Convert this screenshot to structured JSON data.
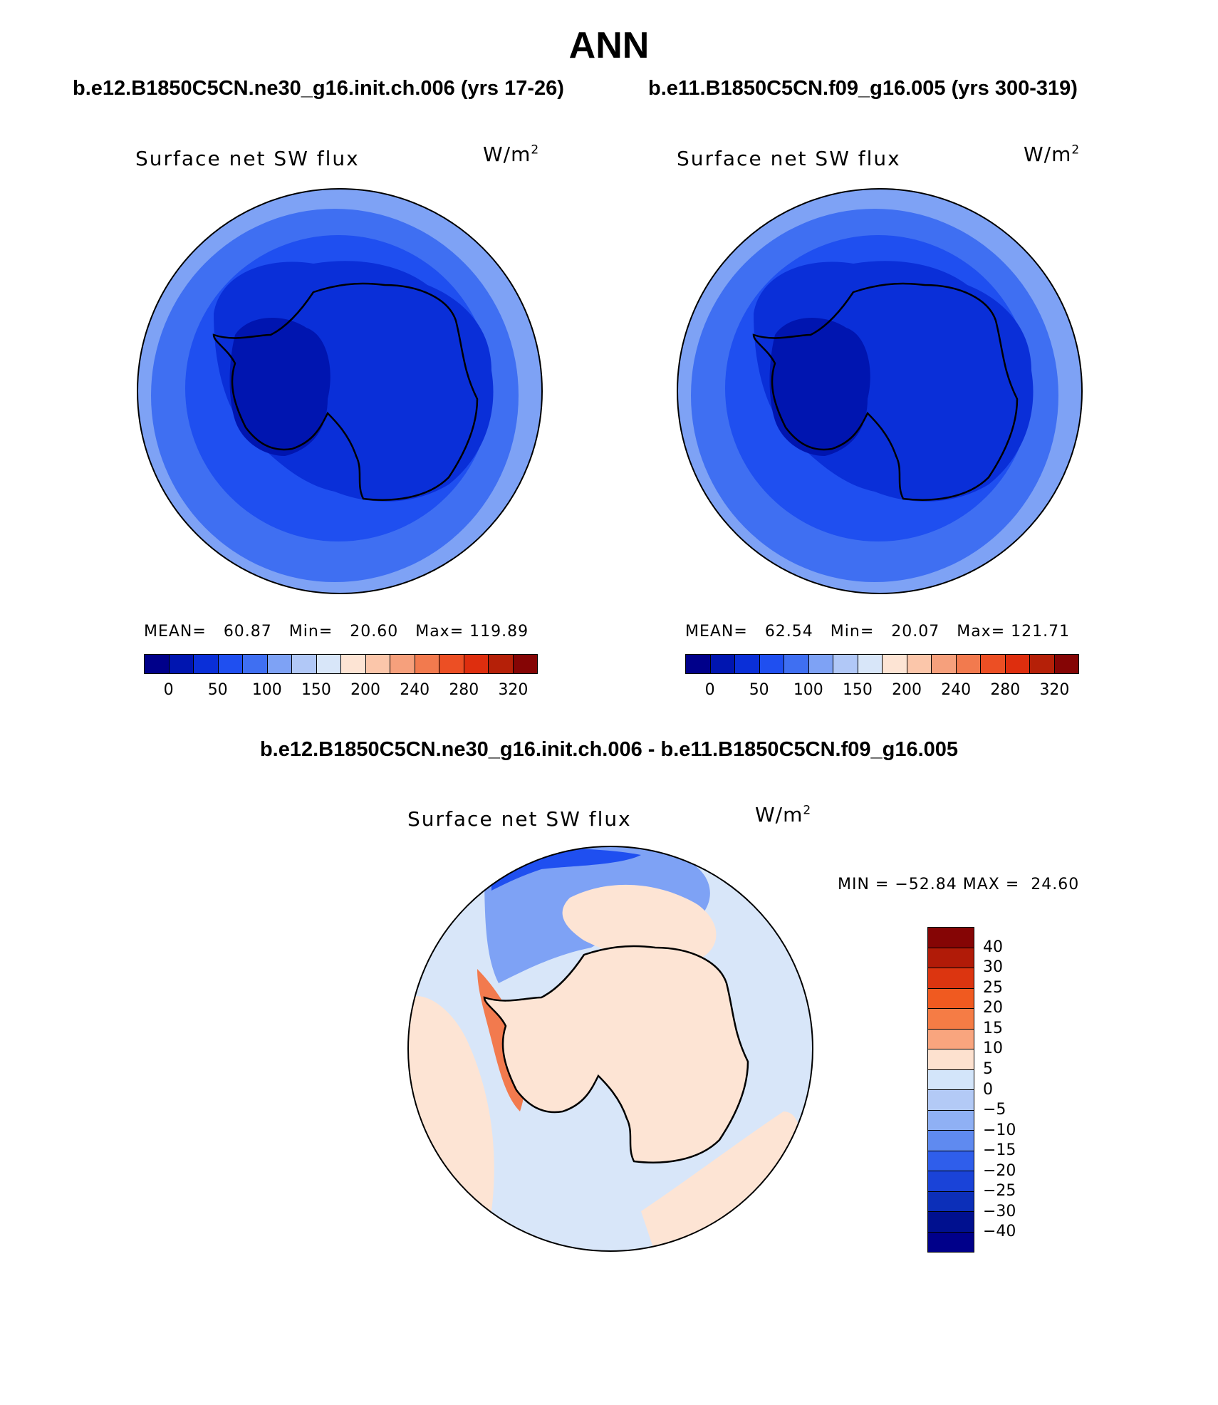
{
  "title": "ANN",
  "panels": [
    {
      "case": "b.e12.B1850C5CN.ne30_g16.init.ch.006 (yrs 17-26)",
      "variable": "Surface net SW flux",
      "units_base": "W/m",
      "units_sup": "2",
      "mean_label": "MEAN=",
      "mean": "60.87",
      "min_label": "Min=",
      "min": "20.60",
      "max_label": "Max=",
      "max": "119.89"
    },
    {
      "case": "b.e11.B1850C5CN.f09_g16.005 (yrs 300-319)",
      "variable": "Surface net SW flux",
      "units_base": "W/m",
      "units_sup": "2",
      "mean_label": "MEAN=",
      "mean": "62.54",
      "min_label": "Min=",
      "min": "20.07",
      "max_label": "Max=",
      "max": "121.71"
    }
  ],
  "diff": {
    "title": "b.e12.B1850C5CN.ne30_g16.init.ch.006 - b.e11.B1850C5CN.f09_g16.005",
    "variable": "Surface net SW flux",
    "units_base": "W/m",
    "units_sup": "2",
    "minmax": "MIN = −52.84 MAX =  24.60"
  },
  "abs_colorbar": {
    "colors": [
      "#00008a",
      "#0015b0",
      "#0a2fd8",
      "#1f4ff0",
      "#3f6ff2",
      "#7ea2f5",
      "#b1c8f7",
      "#d8e6f9",
      "#fde4d4",
      "#fbc6aa",
      "#f6a07c",
      "#f27a4e",
      "#ec4f24",
      "#de2e0e",
      "#b52008",
      "#850505"
    ],
    "ticks": [
      "0",
      "50",
      "100",
      "150",
      "200",
      "240",
      "280",
      "320"
    ]
  },
  "diff_colorbar": {
    "colors": [
      "#850505",
      "#b11b08",
      "#dc3510",
      "#f05a20",
      "#f57c45",
      "#f9a57e",
      "#fde1cf",
      "#d3e5fa",
      "#b3caf6",
      "#8fb0f4",
      "#5f8af0",
      "#2f5eeb",
      "#1a43d8",
      "#0c2fb9",
      "#00108f"
    ],
    "ticks": [
      "40",
      "30",
      "25",
      "20",
      "15",
      "10",
      "5",
      "0",
      "−5",
      "−10",
      "−15",
      "−20",
      "−25",
      "−30",
      "−40"
    ]
  },
  "map_colors": {
    "outer": "#7ea2f5",
    "ring1": "#3f6ff2",
    "ring2": "#1f4ff0",
    "inner": "#0a2fd8",
    "core": "#0015b0",
    "diff_base": "#d8e6f9",
    "diff_pos": "#fde4d4",
    "diff_neg": "#7ea2f5",
    "diff_strong_neg": "#1f4ff0",
    "diff_strong_pos": "#f27a4e"
  }
}
